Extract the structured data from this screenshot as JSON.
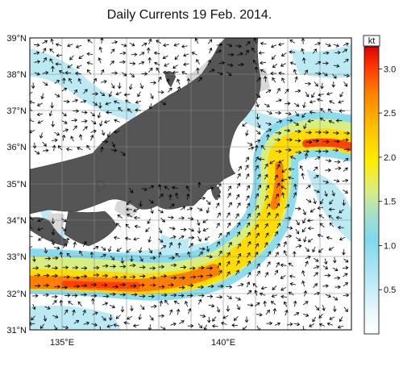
{
  "title": "Daily Currents 19 Feb. 2014.",
  "map": {
    "lat_labels": [
      "39°N",
      "38°N",
      "37°N",
      "36°N",
      "35°N",
      "34°N",
      "33°N",
      "32°N",
      "31°N"
    ],
    "lon_labels": [
      "135°E",
      "140°E"
    ],
    "lat_range": [
      31,
      39
    ],
    "lon_range": [
      133.5,
      143.5
    ],
    "land_color": "#555555",
    "shelf_color": "#d8d8d8",
    "ocean_color": "#ffffff",
    "grid": true
  },
  "colorbar": {
    "unit": "kt",
    "min": 0.0,
    "max": 3.25,
    "ticks": [
      "3.0",
      "2.5",
      "2.0",
      "1.5",
      "1.0",
      "0.5"
    ],
    "tick_values": [
      3.0,
      2.5,
      2.0,
      1.5,
      1.0,
      0.5
    ],
    "colors": [
      "#ffffff",
      "#e0f4fa",
      "#b0e6f4",
      "#7fd6ec",
      "#b8e68a",
      "#f0f000",
      "#ffc800",
      "#ff8c00",
      "#ff4000",
      "#e00000"
    ]
  }
}
